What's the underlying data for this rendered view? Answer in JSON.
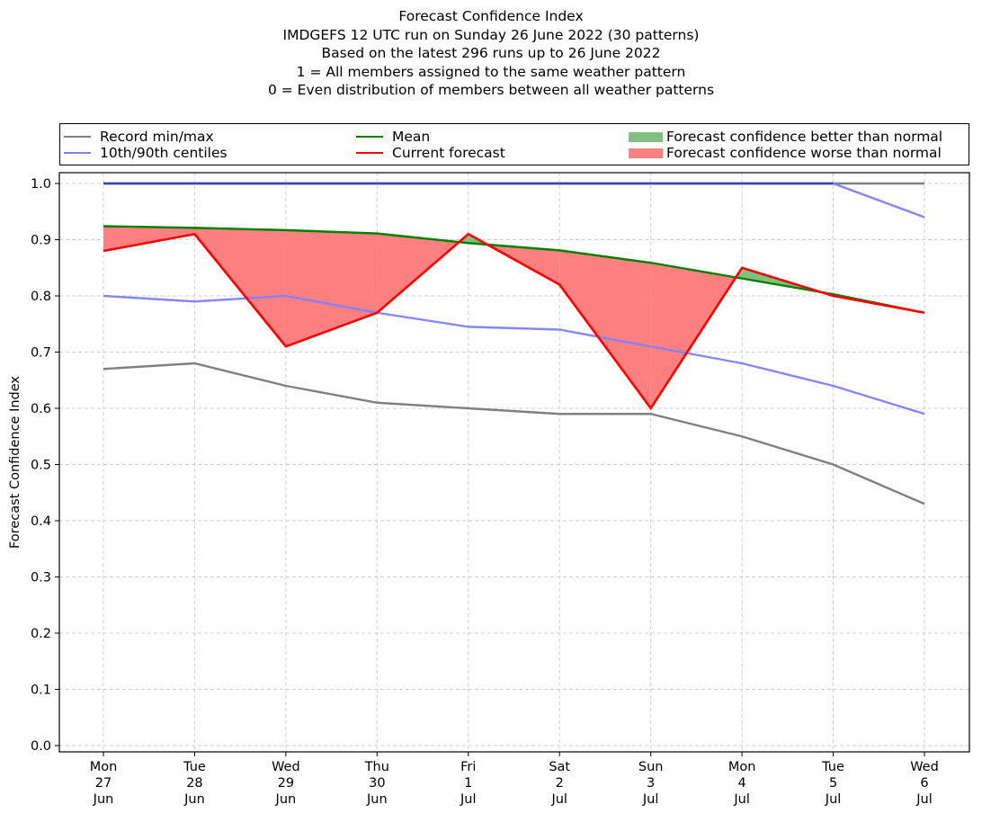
{
  "chart_data": {
    "type": "line",
    "title_lines": [
      "Forecast Confidence Index",
      "IMDGEFS 12 UTC run on Sunday 26 June 2022 (30 patterns)",
      "Based on the latest 296 runs up to 26 June 2022",
      "1 = All members assigned to the same weather pattern",
      "0 = Even distribution of members between all weather patterns"
    ],
    "ylabel": "Forecast Confidence Index",
    "xlabel": "",
    "ylim": [
      0.0,
      1.0
    ],
    "yticks": [
      "0.0",
      "0.1",
      "0.2",
      "0.3",
      "0.4",
      "0.5",
      "0.6",
      "0.7",
      "0.8",
      "0.9",
      "1.0"
    ],
    "grid": true,
    "legend_position": "top",
    "categories": [
      [
        "Mon",
        "27",
        "Jun"
      ],
      [
        "Tue",
        "28",
        "Jun"
      ],
      [
        "Wed",
        "29",
        "Jun"
      ],
      [
        "Thu",
        "30",
        "Jun"
      ],
      [
        "Fri",
        "1",
        "Jul"
      ],
      [
        "Sat",
        "2",
        "Jul"
      ],
      [
        "Sun",
        "3",
        "Jul"
      ],
      [
        "Mon",
        "4",
        "Jul"
      ],
      [
        "Tue",
        "5",
        "Jul"
      ],
      [
        "Wed",
        "6",
        "Jul"
      ]
    ],
    "legend": [
      {
        "label": "Record min/max",
        "kind": "line",
        "color": "#808080"
      },
      {
        "label": "10th/90th centiles",
        "kind": "line",
        "color": "#8080ff"
      },
      {
        "label": "Mean",
        "kind": "line",
        "color": "#008000"
      },
      {
        "label": "Current forecast",
        "kind": "line",
        "color": "#ff0000"
      },
      {
        "label": "Forecast confidence better than normal",
        "kind": "patch",
        "color": "#80c080"
      },
      {
        "label": "Forecast confidence worse than normal",
        "kind": "patch",
        "color": "#ff8080"
      }
    ],
    "series": [
      {
        "name": "Record max",
        "color": "#808080",
        "values": [
          1.0,
          1.0,
          1.0,
          1.0,
          1.0,
          1.0,
          1.0,
          1.0,
          1.0,
          1.0
        ]
      },
      {
        "name": "Record min",
        "color": "#808080",
        "values": [
          0.67,
          0.68,
          0.64,
          0.61,
          0.6,
          0.59,
          0.59,
          0.55,
          0.5,
          0.43
        ]
      },
      {
        "name": "90th centile",
        "color": "#8080ff",
        "values": [
          1.0,
          1.0,
          1.0,
          1.0,
          1.0,
          1.0,
          1.0,
          1.0,
          1.0,
          0.94
        ]
      },
      {
        "name": "10th centile",
        "color": "#8080ff",
        "values": [
          0.8,
          0.79,
          0.8,
          0.77,
          0.745,
          0.74,
          0.71,
          0.68,
          0.64,
          0.59
        ]
      },
      {
        "name": "Mean",
        "color": "#008000",
        "values": [
          0.924,
          0.921,
          0.917,
          0.911,
          0.894,
          0.881,
          0.859,
          0.831,
          0.803,
          0.77
        ]
      },
      {
        "name": "Current forecast",
        "color": "#ff0000",
        "values": [
          0.88,
          0.91,
          0.71,
          0.77,
          0.91,
          0.82,
          0.6,
          0.85,
          0.8,
          0.77
        ]
      }
    ],
    "fill_better_color": "#80c080",
    "fill_worse_color": "#ff8080"
  }
}
